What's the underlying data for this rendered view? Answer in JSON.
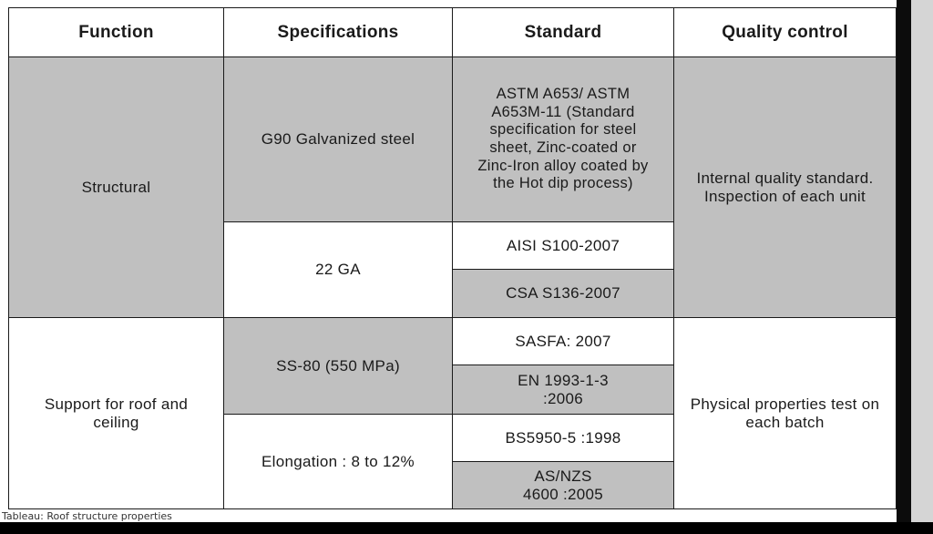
{
  "table": {
    "headers": [
      "Function",
      "Specifications",
      "Standard",
      "Quality control"
    ],
    "function": {
      "structural": "Structural",
      "support": "Support for roof and ceiling"
    },
    "specifications": {
      "g90": "G90 Galvanized steel",
      "ga22": "22 GA",
      "ss80": "SS-80 (550 MPa)",
      "elongation": "Elongation : 8 to 12%"
    },
    "standards": [
      "ASTM A653/ ASTM A653M-11 (Standard specification for steel sheet, Zinc-coated or Zinc-Iron alloy coated by the Hot dip process)",
      "AISI S100-2007",
      "CSA S136-2007",
      "SASFA: 2007",
      "EN 1993-1-3 :2006",
      "BS5950-5 :1998",
      "AS/NZS 4600 :2005"
    ],
    "quality_control": {
      "structural": "Internal quality standard. Inspection of each unit",
      "support": "Physical properties test on each batch"
    }
  },
  "caption": "Tableau: Roof structure properties"
}
